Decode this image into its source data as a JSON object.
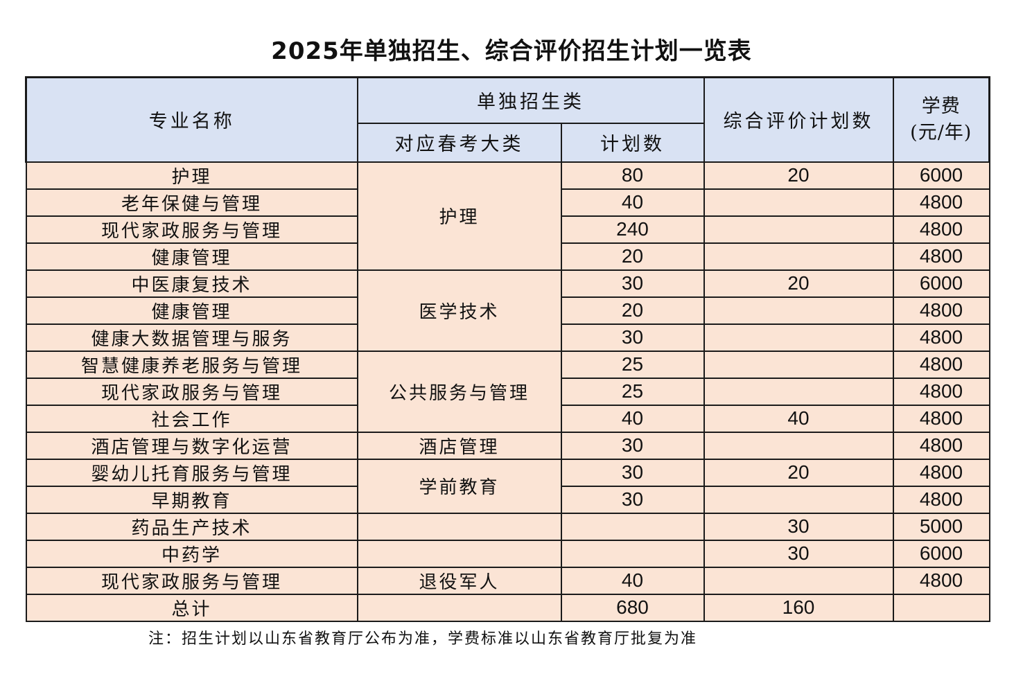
{
  "title": "2025年单独招生、综合评价招生计划一览表",
  "header": {
    "major": "专业名称",
    "single_group": "单独招生类",
    "category": "对应春考大类",
    "plan": "计划数",
    "comprehensive": "综合评价计划数",
    "fee_line1": "学费",
    "fee_line2": "(元/年)"
  },
  "rows": [
    {
      "major": "护理",
      "plan": "80",
      "comp": "20",
      "fee": "6000"
    },
    {
      "major": "老年保健与管理",
      "plan": "40",
      "comp": "",
      "fee": "4800"
    },
    {
      "major": "现代家政服务与管理",
      "plan": "240",
      "comp": "",
      "fee": "4800"
    },
    {
      "major": "健康管理",
      "plan": "20",
      "comp": "",
      "fee": "4800"
    },
    {
      "major": "中医康复技术",
      "plan": "30",
      "comp": "20",
      "fee": "6000"
    },
    {
      "major": "健康管理",
      "plan": "20",
      "comp": "",
      "fee": "4800"
    },
    {
      "major": "健康大数据管理与服务",
      "plan": "30",
      "comp": "",
      "fee": "4800"
    },
    {
      "major": "智慧健康养老服务与管理",
      "plan": "25",
      "comp": "",
      "fee": "4800"
    },
    {
      "major": "现代家政服务与管理",
      "plan": "25",
      "comp": "",
      "fee": "4800"
    },
    {
      "major": "社会工作",
      "plan": "40",
      "comp": "40",
      "fee": "4800"
    },
    {
      "major": "酒店管理与数字化运营",
      "plan": "30",
      "comp": "",
      "fee": "4800"
    },
    {
      "major": "婴幼儿托育服务与管理",
      "plan": "30",
      "comp": "20",
      "fee": "4800"
    },
    {
      "major": "早期教育",
      "plan": "30",
      "comp": "",
      "fee": "4800"
    },
    {
      "major": "药品生产技术",
      "plan": "",
      "comp": "30",
      "fee": "5000"
    },
    {
      "major": "中药学",
      "plan": "",
      "comp": "30",
      "fee": "6000"
    },
    {
      "major": "现代家政服务与管理",
      "plan": "40",
      "comp": "",
      "fee": "4800"
    }
  ],
  "categories": {
    "nursing": "护理",
    "medical_tech": "医学技术",
    "public_service": "公共服务与管理",
    "hotel": "酒店管理",
    "preschool": "学前教育",
    "empty_1": "",
    "empty_2": "",
    "veterans": "退役军人"
  },
  "total": {
    "label": "总计",
    "category": "",
    "plan": "680",
    "comp": "160",
    "fee": ""
  },
  "note": "注：招生计划以山东省教育厅公布为准，学费标准以山东省教育厅批复为准"
}
